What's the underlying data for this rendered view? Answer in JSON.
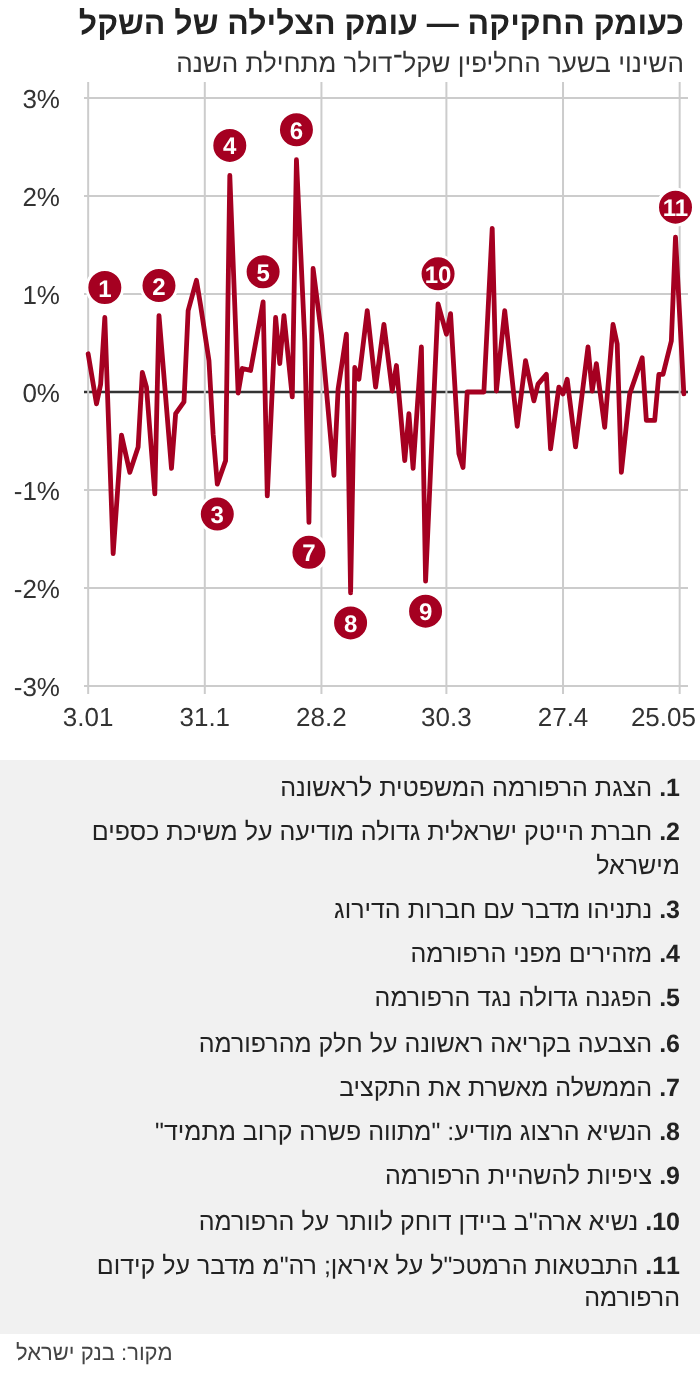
{
  "chart_data": {
    "type": "line",
    "title": "כעומק החקיקה — עומק הצלילה של השקל",
    "subtitle": "השינוי בשער החליפין שקל־דולר מתחילת השנה",
    "color": "#a50021",
    "grid": true,
    "xlim": [
      "--01-02",
      "--05-27"
    ],
    "xticks": [
      {
        "value": "--01-03",
        "label": "3.01"
      },
      {
        "value": "--01-31",
        "label": "31.1"
      },
      {
        "value": "--02-28",
        "label": "28.2"
      },
      {
        "value": "--03-30",
        "label": "30.3"
      },
      {
        "value": "--04-27",
        "label": "27.4"
      },
      {
        "value": "--05-25",
        "label": "25.05"
      }
    ],
    "ylim": [
      -3,
      3
    ],
    "yticks": [
      {
        "value": -3,
        "label": "-3%"
      },
      {
        "value": -2,
        "label": "-2%"
      },
      {
        "value": -1,
        "label": "-1%"
      },
      {
        "value": 0,
        "label": "0%"
      },
      {
        "value": 1,
        "label": "1%"
      },
      {
        "value": 2,
        "label": "2%"
      },
      {
        "value": 3,
        "label": "3%"
      }
    ],
    "x": [
      "--01-03",
      "--01-05",
      "--01-06",
      "--01-07",
      "--01-09",
      "--01-11",
      "--01-13",
      "--01-15",
      "--01-16",
      "--01-17",
      "--01-19",
      "--01-20",
      "--01-23",
      "--01-24",
      "--01-26",
      "--01-27",
      "--01-29",
      "--01-30",
      "--02-01",
      "--02-02",
      "--02-03",
      "--02-05",
      "--02-06",
      "--02-08",
      "--02-09",
      "--02-11",
      "--02-14",
      "--02-15",
      "--02-17",
      "--02-18",
      "--02-19",
      "--02-21",
      "--02-22",
      "--02-24",
      "--02-25",
      "--02-26",
      "--02-28",
      "--03-03",
      "--03-04",
      "--03-06",
      "--03-07",
      "--03-08",
      "--03-09",
      "--03-11",
      "--03-13",
      "--03-15",
      "--03-17",
      "--03-18",
      "--03-20",
      "--03-21",
      "--03-22",
      "--03-24",
      "--03-25",
      "--03-28",
      "--03-30",
      "--03-31",
      "--04-02",
      "--04-03",
      "--04-04",
      "--04-08",
      "--04-10",
      "--04-11",
      "--04-13",
      "--04-16",
      "--04-18",
      "--04-20",
      "--04-21",
      "--04-23",
      "--04-24",
      "--04-26",
      "--04-27",
      "--04-28",
      "--04-30",
      "--05-03",
      "--05-04",
      "--05-05",
      "--05-07",
      "--05-09",
      "--05-10",
      "--05-11",
      "--05-13",
      "--05-16",
      "--05-17",
      "--05-19",
      "--05-20",
      "--05-21",
      "--05-23",
      "--05-24",
      "--05-26"
    ],
    "values": [
      0.39,
      -0.12,
      0.08,
      0.76,
      -1.65,
      -0.44,
      -0.82,
      -0.56,
      0.2,
      0.05,
      -1.04,
      0.78,
      -0.78,
      -0.22,
      -0.1,
      0.83,
      1.14,
      0.88,
      0.32,
      -0.43,
      -0.94,
      -0.7,
      2.21,
      -0.01,
      0.24,
      0.22,
      0.92,
      -1.06,
      0.76,
      0.29,
      0.78,
      -0.05,
      2.37,
      0.52,
      -1.33,
      1.26,
      0.59,
      -0.85,
      0.03,
      0.59,
      -2.05,
      0.25,
      0.13,
      0.83,
      0.05,
      0.69,
      0.01,
      0.27,
      -0.7,
      -0.22,
      -0.78,
      0.46,
      -1.93,
      0.9,
      0.59,
      0.8,
      -0.63,
      -0.77,
      0,
      0,
      1.67,
      0.01,
      0.83,
      -0.35,
      0.32,
      -0.09,
      0.08,
      0.18,
      -0.58,
      0.05,
      -0.02,
      0.13,
      -0.56,
      0.46,
      0.01,
      0.29,
      -0.36,
      0.69,
      0.49,
      -0.82,
      -0.02,
      0.35,
      -0.29,
      -0.29,
      0.18,
      0.18,
      0.52,
      1.58,
      -0.02
    ],
    "annotations": [
      {
        "text": "1",
        "x": "--01-07",
        "y": 0.76
      },
      {
        "text": "2",
        "x": "--01-20",
        "y": 0.78
      },
      {
        "text": "3",
        "x": "--02-03",
        "y": -0.94
      },
      {
        "text": "4",
        "x": "--02-06",
        "y": 2.21
      },
      {
        "text": "5",
        "x": "--02-14",
        "y": 0.92
      },
      {
        "text": "6",
        "x": "--02-22",
        "y": 2.37
      },
      {
        "text": "7",
        "x": "--02-25",
        "y": -1.33
      },
      {
        "text": "8",
        "x": "--03-07",
        "y": -2.05
      },
      {
        "text": "9",
        "x": "--03-25",
        "y": -1.93
      },
      {
        "text": "10",
        "x": "--03-28",
        "y": 0.9
      },
      {
        "text": "11",
        "x": "--05-24",
        "y": 1.58
      },
      "1. הצגת הרפורמה המשפטית לראשונה",
      "2. חברת הייטק ישראלית גדולה מודיעה על משיכת כספים מישראל",
      "3. נתניהו מדבר עם חברות הדירוג",
      "4. מזהירים מפני הרפורמה",
      "5. הפגנה גדולה נגד הרפורמה",
      "6. הצבעה בקריאה ראשונה על חלק מהרפורמה",
      "7. הממשלה מאשרת את התקציב",
      "8. הנשיא הרצוג מודיע: \"מתווה פשרה קרוב מתמיד\"",
      "9. ציפיות להשהיית הרפורמה",
      "10. נשיא ארה\"ב ביידן דוחק לוותר על הרפורמה",
      "11. התבטאות הרמטכ\"ל על איראן; רה\"מ מדבר על קידום הרפורמה",
      "מקור: בנק ישראל"
    ]
  }
}
